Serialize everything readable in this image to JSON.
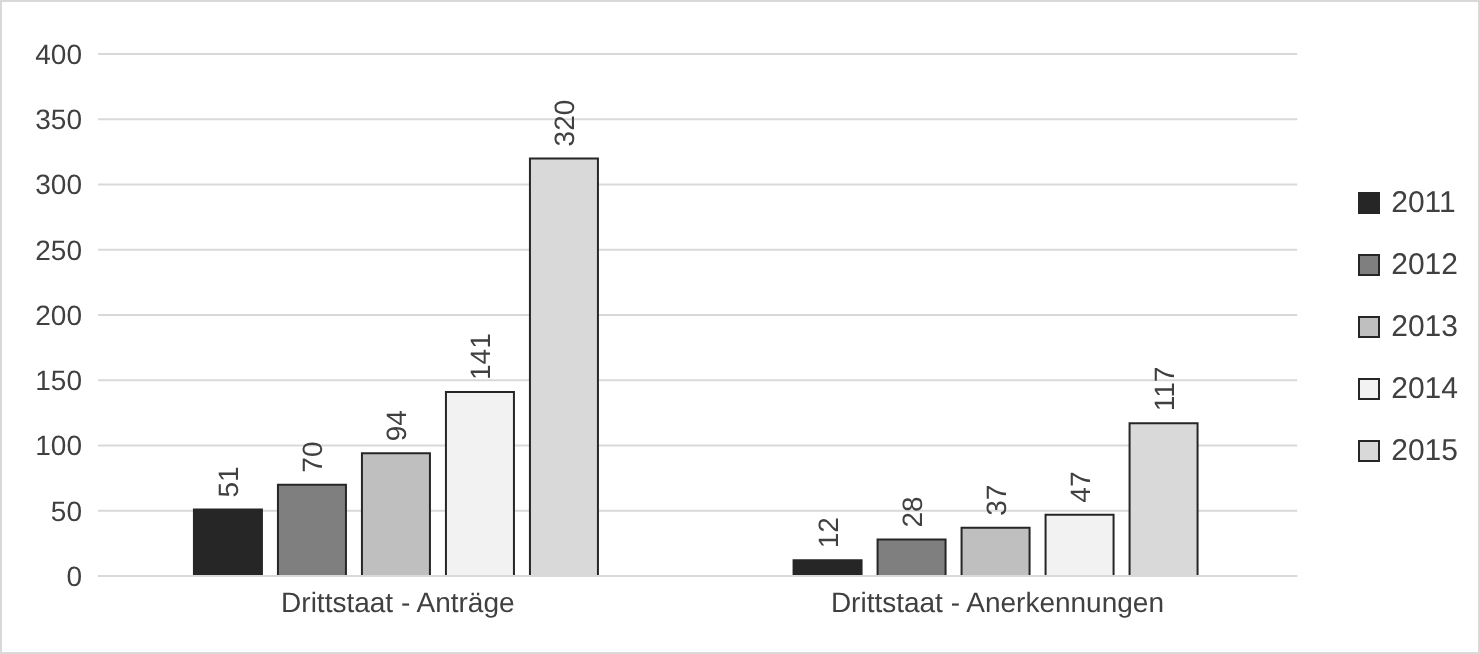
{
  "chart_data": {
    "type": "bar",
    "categories": [
      "Drittstaat - Anträge",
      "Drittstaat - Anerkennungen"
    ],
    "series": [
      {
        "name": "2011",
        "color": "#262626",
        "values": [
          51,
          12
        ]
      },
      {
        "name": "2012",
        "color": "#7f7f7f",
        "values": [
          70,
          28
        ]
      },
      {
        "name": "2013",
        "color": "#bfbfbf",
        "values": [
          94,
          37
        ]
      },
      {
        "name": "2014",
        "color": "#f2f2f2",
        "values": [
          141,
          47
        ]
      },
      {
        "name": "2015",
        "color": "#d9d9d9",
        "values": [
          320,
          117
        ]
      }
    ],
    "ylim": [
      0,
      400
    ],
    "yticks": [
      0,
      50,
      100,
      150,
      200,
      250,
      300,
      350,
      400
    ],
    "grid": "y",
    "legend": "right",
    "data_labels": true
  }
}
